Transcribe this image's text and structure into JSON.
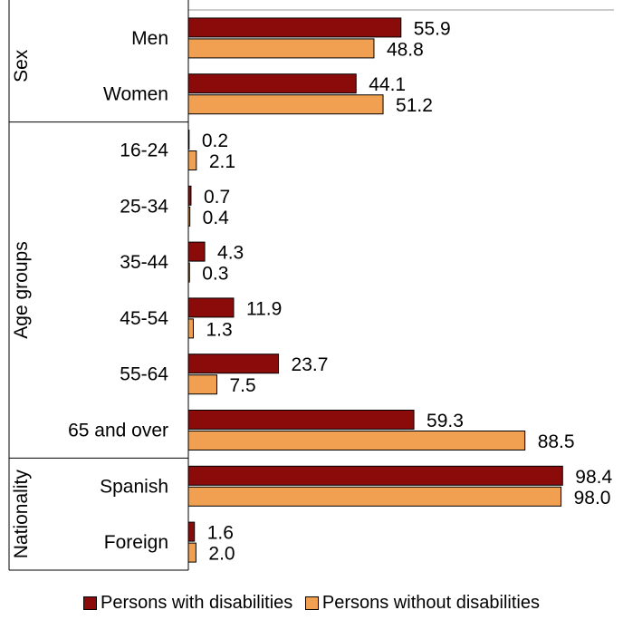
{
  "chart_data": {
    "type": "bar",
    "orientation": "horizontal",
    "xlim": [
      0,
      100
    ],
    "grid": false,
    "legend_position": "bottom",
    "groups": [
      {
        "label": "Sex",
        "categories": [
          "Men",
          "Women"
        ]
      },
      {
        "label": "Age groups",
        "categories": [
          "16-24",
          "25-34",
          "35-44",
          "45-54",
          "55-64",
          "65 and over"
        ]
      },
      {
        "label": "Nationality",
        "categories": [
          "Spanish",
          "Foreign"
        ]
      }
    ],
    "categories": [
      "Men",
      "Women",
      "16-24",
      "25-34",
      "35-44",
      "45-54",
      "55-64",
      "65 and over",
      "Spanish",
      "Foreign"
    ],
    "series": [
      {
        "name": "Persons with disabilities",
        "color": "#8B0A0A",
        "values": [
          55.9,
          44.1,
          0.2,
          0.7,
          4.3,
          11.9,
          23.7,
          59.3,
          98.4,
          1.6
        ],
        "labels": [
          "55.9",
          "44.1",
          "0.2",
          "0.7",
          "4.3",
          "11.9",
          "23.7",
          "59.3",
          "98.4",
          "1.6"
        ]
      },
      {
        "name": "Persons without disabilities",
        "color": "#F0A050",
        "values": [
          48.8,
          51.2,
          2.1,
          0.4,
          0.3,
          1.3,
          7.5,
          88.5,
          98.0,
          2.0
        ],
        "labels": [
          "48.8",
          "51.2",
          "2.1",
          "0.4",
          "0.3",
          "1.3",
          "7.5",
          "88.5",
          "98.0",
          "2.0"
        ]
      }
    ]
  }
}
